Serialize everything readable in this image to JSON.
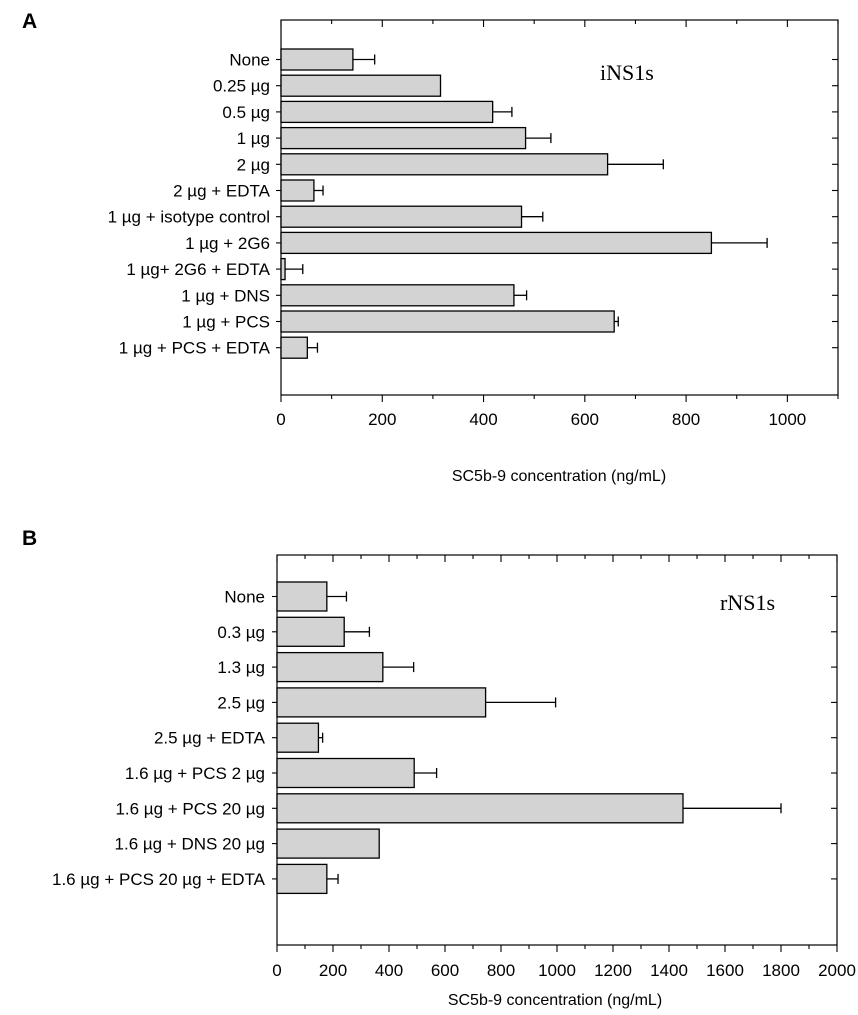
{
  "chart_data": [
    {
      "type": "bar",
      "orientation": "horizontal",
      "panel_label": "A",
      "annotation": "iNS1s",
      "xlabel": "SC5b-9 concentration (ng/mL)",
      "xlim": [
        0,
        1100
      ],
      "xticks": [
        0,
        200,
        400,
        600,
        800,
        1000
      ],
      "categories": [
        "None",
        "0.25 µg",
        "0.5 µg",
        "1 µg",
        "2 µg",
        "2 µg + EDTA",
        "1 µg + isotype control",
        "1 µg + 2G6",
        "1 µg+ 2G6 + EDTA",
        "1 µg + DNS",
        "1 µg + PCS",
        "1 µg + PCS + EDTA"
      ],
      "values": [
        142,
        315,
        418,
        483,
        645,
        65,
        475,
        850,
        8,
        460,
        658,
        52
      ],
      "errors": [
        43,
        0,
        38,
        50,
        110,
        18,
        42,
        110,
        35,
        25,
        8,
        20
      ],
      "bar_color": "#d3d3d3",
      "grid": false
    },
    {
      "type": "bar",
      "orientation": "horizontal",
      "panel_label": "B",
      "annotation": "rNS1s",
      "xlabel": "SC5b-9 concentration (ng/mL)",
      "xlim": [
        0,
        2000
      ],
      "xticks": [
        0,
        200,
        400,
        600,
        800,
        1000,
        1200,
        1400,
        1600,
        1800,
        2000
      ],
      "categories": [
        "None",
        "0.3 µg",
        "1.3 µg",
        "2.5 µg",
        "2.5 µg + EDTA",
        "1.6 µg + PCS 2 µg",
        "1.6 µg + PCS 20 µg",
        "1.6 µg + DNS 20 µg",
        "1.6 µg + PCS 20 µg + EDTA"
      ],
      "values": [
        178,
        240,
        378,
        745,
        148,
        490,
        1450,
        365,
        178
      ],
      "errors": [
        70,
        90,
        110,
        250,
        15,
        80,
        350,
        0,
        40
      ],
      "bar_color": "#d3d3d3",
      "grid": false
    }
  ]
}
